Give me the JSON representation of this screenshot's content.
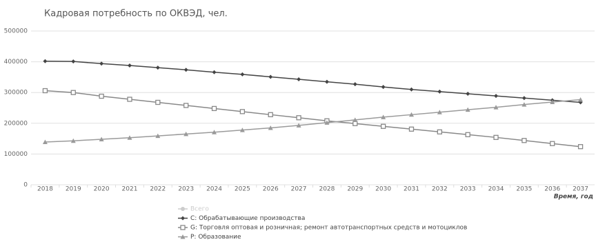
{
  "chart_data": {
    "type": "line",
    "title": "Кадровая потребность по ОКВЭД, чел.",
    "xlabel": "Время, год",
    "categories": [
      "2018",
      "2019",
      "2020",
      "2021",
      "2022",
      "2023",
      "2024",
      "2025",
      "2026",
      "2027",
      "2028",
      "2029",
      "2030",
      "2031",
      "2032",
      "2033",
      "2034",
      "2035",
      "2036",
      "2037"
    ],
    "series": [
      {
        "name": "Всего",
        "color": "#cccccc",
        "marker": "circle",
        "hidden": true,
        "values": [
          null,
          null,
          null,
          null,
          null,
          null,
          null,
          null,
          null,
          null,
          null,
          null,
          null,
          null,
          null,
          null,
          null,
          null,
          null,
          null
        ]
      },
      {
        "name": "C: Обрабатывающие производства",
        "color": "#444444",
        "marker": "diamond",
        "values": [
          402000,
          401000,
          394000,
          388000,
          381000,
          374000,
          366000,
          359000,
          351000,
          343000,
          335000,
          327000,
          318000,
          310000,
          303000,
          296000,
          289000,
          282000,
          275000,
          268000
        ]
      },
      {
        "name": "G: Торговля оптовая и розничная; ремонт автотранспортных средств и мотоциклов",
        "color": "#888888",
        "marker": "square",
        "values": [
          306000,
          300000,
          288000,
          278000,
          268000,
          258000,
          248000,
          238000,
          228000,
          218000,
          208000,
          199000,
          190000,
          181000,
          172000,
          163000,
          154000,
          144000,
          134000,
          124000
        ]
      },
      {
        "name": "P: Образование",
        "color": "#9a9a9a",
        "marker": "triangle",
        "values": [
          139000,
          143000,
          148000,
          153000,
          159000,
          165000,
          171000,
          178000,
          185000,
          193000,
          202000,
          211000,
          220000,
          228000,
          236000,
          244000,
          252000,
          261000,
          269000,
          277000
        ]
      }
    ],
    "ylim": [
      0,
      500000
    ],
    "yticks": [
      0,
      100000,
      200000,
      300000,
      400000,
      500000
    ],
    "grid": true
  }
}
